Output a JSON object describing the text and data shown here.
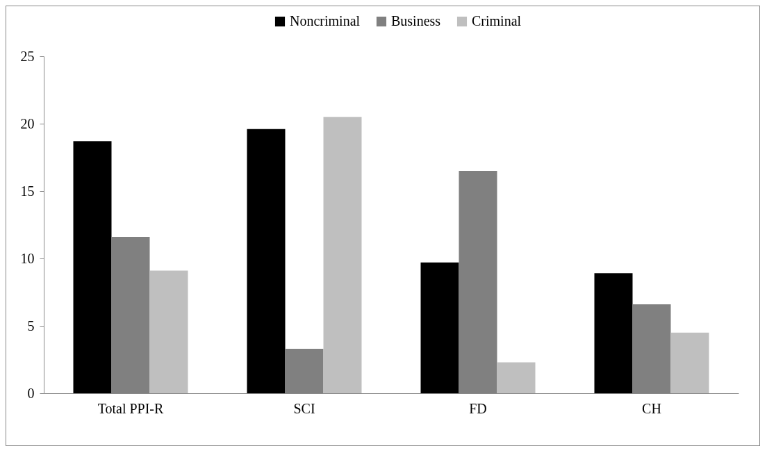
{
  "chart_data": {
    "type": "bar",
    "categories": [
      "Total PPI-R",
      "SCI",
      "FD",
      "CH"
    ],
    "series": [
      {
        "name": "Noncriminal",
        "color": "#000000",
        "values": [
          18.7,
          19.6,
          9.7,
          8.9
        ]
      },
      {
        "name": "Business",
        "color": "#808080",
        "values": [
          11.6,
          3.3,
          16.5,
          6.6
        ]
      },
      {
        "name": "Criminal",
        "color": "#bfbfbf",
        "values": [
          9.1,
          20.5,
          2.3,
          4.5
        ]
      }
    ],
    "ylim": [
      0,
      25
    ],
    "yticks": [
      0,
      5,
      10,
      15,
      20,
      25
    ],
    "grid": false,
    "legend": "top"
  }
}
